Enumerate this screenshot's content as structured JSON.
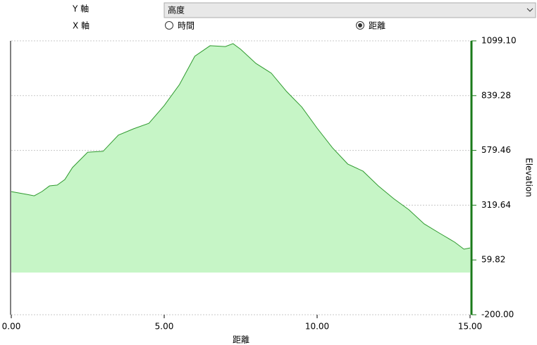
{
  "controls": {
    "y_axis_label": "Y 軸",
    "y_axis_value": "高度",
    "x_axis_label": "X 軸",
    "x_options": [
      "時間",
      "距離"
    ],
    "x_selected": 1
  },
  "chart_data": {
    "type": "area",
    "x": [
      0,
      0.5,
      0.75,
      1.0,
      1.25,
      1.5,
      1.75,
      2.0,
      2.5,
      3.0,
      3.5,
      4.0,
      4.5,
      5.0,
      5.5,
      6.0,
      6.5,
      7.0,
      7.25,
      7.5,
      8.0,
      8.5,
      9.0,
      9.5,
      10.0,
      10.5,
      11.0,
      11.5,
      12.0,
      12.5,
      13.0,
      13.5,
      14.0,
      14.5,
      14.8,
      15.0
    ],
    "values": [
      384,
      371,
      364,
      384,
      411,
      415,
      441,
      498,
      571,
      575,
      652,
      682,
      708,
      792,
      892,
      1026,
      1076,
      1072,
      1086,
      1059,
      992,
      946,
      859,
      785,
      685,
      592,
      515,
      481,
      411,
      351,
      298,
      231,
      187,
      144,
      111,
      117
    ],
    "color": "#2f9a2f",
    "fill_color": "#c6f5c6",
    "axis_color": "#1a7a1a",
    "xlim": [
      0,
      15
    ],
    "xticks": [
      {
        "value": 0,
        "label": "0.00"
      },
      {
        "value": 5,
        "label": "5.00"
      },
      {
        "value": 10,
        "label": "10.00"
      },
      {
        "value": 15,
        "label": "15.00"
      }
    ],
    "ylim": [
      -200,
      1099.1
    ],
    "yticks": [
      {
        "value": -200,
        "label": "-200.00"
      },
      59.82,
      319.64,
      579.46,
      839.28,
      {
        "value": 1099.1,
        "label": "1099.10"
      }
    ],
    "y_label": "Elevation",
    "x_label": "距離",
    "grid": true
  }
}
